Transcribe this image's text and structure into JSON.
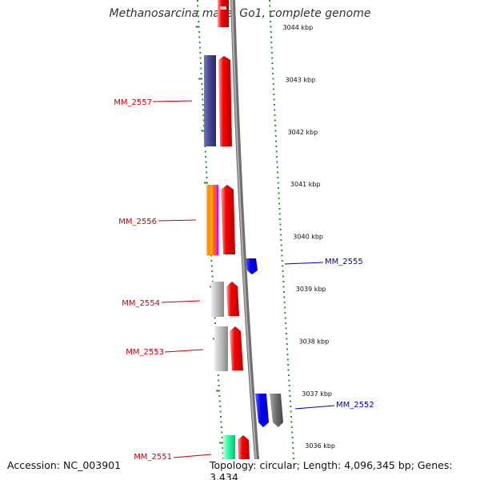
{
  "title": "Methanosarcina mazei Go1, complete genome",
  "footer": {
    "accession": "Accession: NC_003901",
    "summary": "Topology: circular; Length: 4,096,345 bp; Genes: 3,434"
  },
  "ticks": [
    {
      "kbp": 3044,
      "label": "3044 kbp"
    },
    {
      "kbp": 3043,
      "label": "3043 kbp"
    },
    {
      "kbp": 3042,
      "label": "3042 kbp"
    },
    {
      "kbp": 3041,
      "label": "3041 kbp"
    },
    {
      "kbp": 3040,
      "label": "3040 kbp"
    },
    {
      "kbp": 3039,
      "label": "3039 kbp"
    },
    {
      "kbp": 3038,
      "label": "3038 kbp"
    },
    {
      "kbp": 3037,
      "label": "3037 kbp"
    },
    {
      "kbp": 3036,
      "label": "3036 kbp"
    }
  ],
  "genes": [
    {
      "name": "MM_2557",
      "strand": "minus",
      "label_color": "#cc0000",
      "features": [
        "#4a4a9a",
        "#ff0000"
      ]
    },
    {
      "name": "MM_2556",
      "strand": "minus",
      "label_color": "#cc0000",
      "features": [
        "#ff8800",
        "#ff0000"
      ]
    },
    {
      "name": "MM_2555",
      "strand": "plus",
      "label_color": "#0000bb",
      "features": [
        "#0000ff"
      ]
    },
    {
      "name": "MM_2554",
      "strand": "minus",
      "label_color": "#cc0000",
      "features": [
        "#bbbbbb",
        "#ff0000"
      ]
    },
    {
      "name": "MM_2553",
      "strand": "minus",
      "label_color": "#cc0000",
      "features": [
        "#bbbbbb",
        "#ff0000"
      ]
    },
    {
      "name": "MM_2552",
      "strand": "plus",
      "label_color": "#0000bb",
      "features": [
        "#0000ff",
        "#777777"
      ]
    },
    {
      "name": "MM_2551",
      "strand": "minus",
      "label_color": "#cc0000",
      "features": [
        "#33ffaa",
        "#ff0000"
      ]
    }
  ],
  "colors": {
    "tick_marks": "#2e8b2e",
    "backbone": "#808080",
    "minus_strand": "#ff0000",
    "plus_strand": "#0000ff"
  }
}
